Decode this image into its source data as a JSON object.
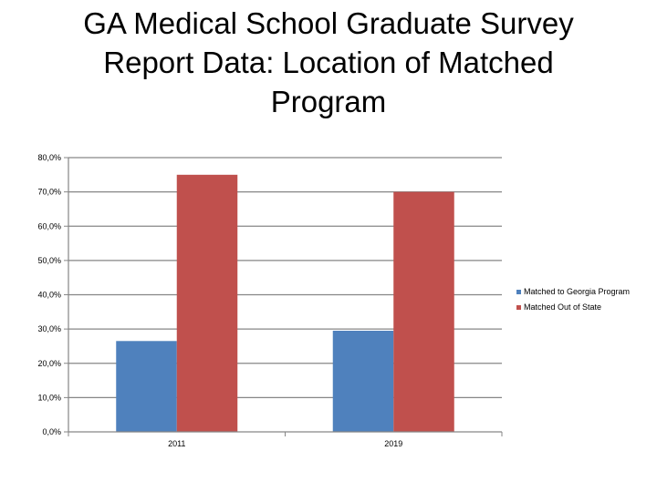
{
  "title_lines": [
    "GA Medical School Graduate Survey",
    "Report Data: Location of Matched",
    "Program"
  ],
  "chart_data": {
    "type": "bar",
    "title": "GA Medical School Graduate Survey Report Data: Location of Matched Program",
    "categories": [
      "2011",
      "2019"
    ],
    "series": [
      {
        "name": "Matched to Georgia Program",
        "values": [
          26.5,
          29.5
        ],
        "color": "#4F81BD"
      },
      {
        "name": "Matched Out of State",
        "values": [
          75.0,
          70.0
        ],
        "color": "#C0504D"
      }
    ],
    "ylim": [
      0,
      80
    ],
    "yticks": [
      0,
      10,
      20,
      30,
      40,
      50,
      60,
      70,
      80
    ],
    "ytick_labels": [
      "0,0%",
      "10,0%",
      "20,0%",
      "30,0%",
      "40,0%",
      "50,0%",
      "60,0%",
      "70,0%",
      "80,0%"
    ],
    "grid": true,
    "legend_position": "right",
    "xlabel": "",
    "ylabel": ""
  }
}
